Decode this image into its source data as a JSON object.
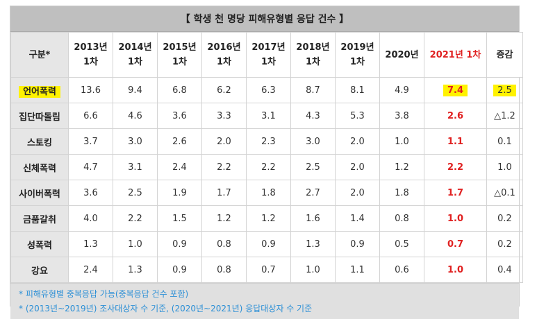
{
  "title": "【 학생 천 명당 피해유형별 응답 건수 】",
  "header": {
    "category": "구분*",
    "years": [
      {
        "l1": "2013년",
        "l2": "1차"
      },
      {
        "l1": "2014년",
        "l2": "1차"
      },
      {
        "l1": "2015년",
        "l2": "1차"
      },
      {
        "l1": "2016년",
        "l2": "1차"
      },
      {
        "l1": "2017년",
        "l2": "1차"
      },
      {
        "l1": "2018년",
        "l2": "1차"
      },
      {
        "l1": "2019년",
        "l2": "1차"
      },
      {
        "l1": "2020년",
        "l2": ""
      }
    ],
    "latest": "2021년 1차",
    "change": "증감"
  },
  "rows": [
    {
      "name": "언어폭력",
      "values": [
        "13.6",
        "9.4",
        "6.8",
        "6.2",
        "6.3",
        "8.7",
        "8.1",
        "4.9"
      ],
      "latest": "7.4",
      "change": "2.5"
    },
    {
      "name": "집단따돌림",
      "values": [
        "6.6",
        "4.6",
        "3.6",
        "3.3",
        "3.1",
        "4.3",
        "5.3",
        "3.8"
      ],
      "latest": "2.6",
      "change": "△1.2"
    },
    {
      "name": "스토킹",
      "values": [
        "3.7",
        "3.0",
        "2.6",
        "2.0",
        "2.3",
        "3.0",
        "2.0",
        "1.0"
      ],
      "latest": "1.1",
      "change": "0.1"
    },
    {
      "name": "신체폭력",
      "values": [
        "4.7",
        "3.1",
        "2.4",
        "2.2",
        "2.2",
        "2.5",
        "2.0",
        "1.2"
      ],
      "latest": "2.2",
      "change": "1.0"
    },
    {
      "name": "사이버폭력",
      "values": [
        "3.6",
        "2.5",
        "1.9",
        "1.7",
        "1.8",
        "2.7",
        "2.0",
        "1.8"
      ],
      "latest": "1.7",
      "change": "△0.1"
    },
    {
      "name": "금품갈취",
      "values": [
        "4.0",
        "2.2",
        "1.5",
        "1.2",
        "1.2",
        "1.6",
        "1.4",
        "0.8"
      ],
      "latest": "1.0",
      "change": "0.2"
    },
    {
      "name": "성폭력",
      "values": [
        "1.3",
        "1.0",
        "0.9",
        "0.8",
        "0.9",
        "1.3",
        "0.9",
        "0.5"
      ],
      "latest": "0.7",
      "change": "0.2"
    },
    {
      "name": "강요",
      "values": [
        "2.4",
        "1.3",
        "0.9",
        "0.8",
        "0.7",
        "1.0",
        "1.1",
        "0.6"
      ],
      "latest": "1.0",
      "change": "0.4"
    }
  ],
  "notes": [
    "* 피해유형별 중복응답 가능(중복응답 건수 포함)",
    "* (2013년~2019년) 조사대상자 수 기준, (2020년~2021년) 응답대상자 수 기준"
  ]
}
